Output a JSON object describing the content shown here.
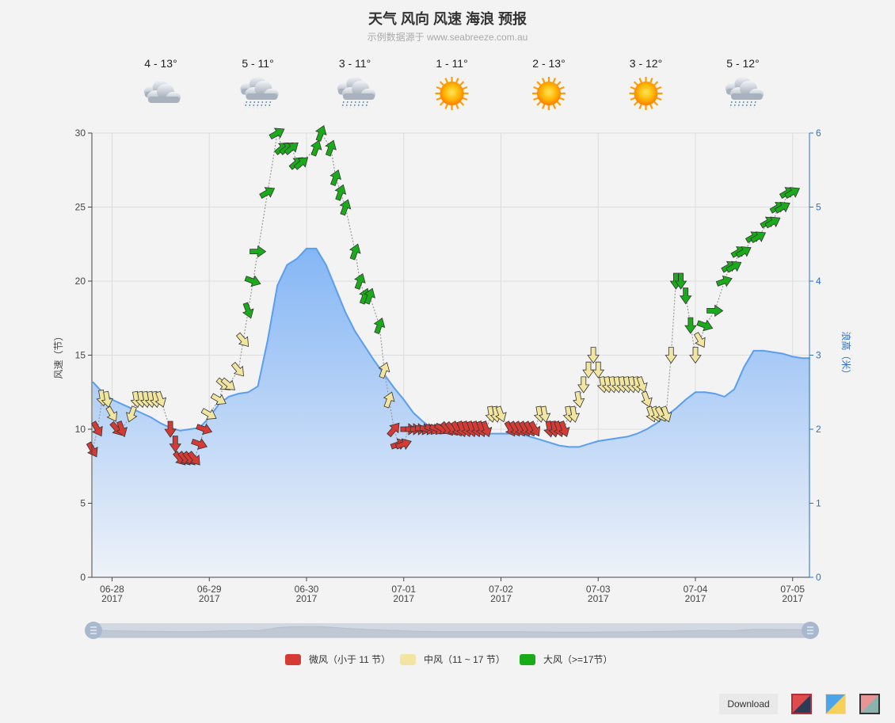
{
  "title": "天气 风向 风速 海浪 预报",
  "subtitle": "示例数据源于 www.seabreeze.com.au",
  "toolbar": {
    "download_label": "Download"
  },
  "weather": [
    {
      "temp": "4 - 13°",
      "icon": "cloudy-icon"
    },
    {
      "temp": "5 - 11°",
      "icon": "showers-icon"
    },
    {
      "temp": "3 - 11°",
      "icon": "showers-icon"
    },
    {
      "temp": "1 - 11°",
      "icon": "sunny-icon"
    },
    {
      "temp": "2 - 13°",
      "icon": "sunny-icon"
    },
    {
      "temp": "3 - 12°",
      "icon": "sunny-icon"
    },
    {
      "temp": "5 - 12°",
      "icon": "showers-icon"
    }
  ],
  "chart_data": {
    "type": "area",
    "x_ticks": [
      "06-28",
      "06-29",
      "06-30",
      "07-01",
      "07-02",
      "07-03",
      "07-04",
      "07-05"
    ],
    "x_tick_year": "2017",
    "x_start_day": -0.2,
    "x_end_day": 7.18,
    "y_left": {
      "label": "风速（节）",
      "min": 0,
      "max": 30,
      "ticks": [
        0,
        5,
        10,
        15,
        20,
        25,
        30
      ]
    },
    "y_right": {
      "label": "浪高（米）",
      "min": 0,
      "max": 6,
      "ticks": [
        0,
        1,
        2,
        3,
        4,
        5,
        6
      ]
    },
    "wave_height": [
      [
        -0.2,
        2.64
      ],
      [
        -0.1,
        2.5
      ],
      [
        0.0,
        2.4
      ],
      [
        0.1,
        2.34
      ],
      [
        0.2,
        2.28
      ],
      [
        0.3,
        2.22
      ],
      [
        0.4,
        2.16
      ],
      [
        0.5,
        2.08
      ],
      [
        0.6,
        2.02
      ],
      [
        0.7,
        1.98
      ],
      [
        0.8,
        2.0
      ],
      [
        0.9,
        2.02
      ],
      [
        1.0,
        2.16
      ],
      [
        1.1,
        2.34
      ],
      [
        1.2,
        2.44
      ],
      [
        1.3,
        2.48
      ],
      [
        1.4,
        2.5
      ],
      [
        1.5,
        2.58
      ],
      [
        1.6,
        3.2
      ],
      [
        1.7,
        3.94
      ],
      [
        1.8,
        4.22
      ],
      [
        1.9,
        4.3
      ],
      [
        2.0,
        4.44
      ],
      [
        2.1,
        4.44
      ],
      [
        2.2,
        4.22
      ],
      [
        2.3,
        3.9
      ],
      [
        2.4,
        3.58
      ],
      [
        2.5,
        3.32
      ],
      [
        2.6,
        3.12
      ],
      [
        2.7,
        2.92
      ],
      [
        2.8,
        2.74
      ],
      [
        2.9,
        2.56
      ],
      [
        3.0,
        2.4
      ],
      [
        3.1,
        2.22
      ],
      [
        3.2,
        2.1
      ],
      [
        3.3,
        2.0
      ],
      [
        3.4,
        1.96
      ],
      [
        3.5,
        1.94
      ],
      [
        3.6,
        1.94
      ],
      [
        3.7,
        1.94
      ],
      [
        3.8,
        1.94
      ],
      [
        3.9,
        1.94
      ],
      [
        4.0,
        1.94
      ],
      [
        4.1,
        1.94
      ],
      [
        4.2,
        1.94
      ],
      [
        4.3,
        1.9
      ],
      [
        4.4,
        1.86
      ],
      [
        4.5,
        1.82
      ],
      [
        4.6,
        1.78
      ],
      [
        4.7,
        1.76
      ],
      [
        4.8,
        1.76
      ],
      [
        4.9,
        1.8
      ],
      [
        5.0,
        1.84
      ],
      [
        5.1,
        1.86
      ],
      [
        5.2,
        1.88
      ],
      [
        5.3,
        1.9
      ],
      [
        5.4,
        1.94
      ],
      [
        5.5,
        2.0
      ],
      [
        5.6,
        2.08
      ],
      [
        5.7,
        2.18
      ],
      [
        5.8,
        2.28
      ],
      [
        5.9,
        2.4
      ],
      [
        6.0,
        2.5
      ],
      [
        6.1,
        2.5
      ],
      [
        6.2,
        2.48
      ],
      [
        6.3,
        2.44
      ],
      [
        6.4,
        2.54
      ],
      [
        6.5,
        2.84
      ],
      [
        6.6,
        3.06
      ],
      [
        6.7,
        3.06
      ],
      [
        6.8,
        3.04
      ],
      [
        6.9,
        3.02
      ],
      [
        7.0,
        2.98
      ],
      [
        7.1,
        2.96
      ],
      [
        7.18,
        2.96
      ]
    ],
    "wind_series": [
      {
        "name": "微风（小于 11 节）",
        "color": "#d53a35"
      },
      {
        "name": "中风（11 ~ 17 节）",
        "color": "#f1e5a0"
      },
      {
        "name": "大风（>=17节）",
        "color": "#1aab1a"
      }
    ],
    "wind": [
      [
        -0.2,
        8.6,
        330
      ],
      [
        -0.15,
        10.0,
        330
      ],
      [
        -0.1,
        12.1,
        350
      ],
      [
        -0.05,
        12.0,
        350
      ],
      [
        0.0,
        11.0,
        330
      ],
      [
        0.05,
        10.0,
        320
      ],
      [
        0.1,
        10.0,
        340
      ],
      [
        0.2,
        11.0,
        20
      ],
      [
        0.25,
        12.0,
        350
      ],
      [
        0.3,
        12.0,
        350
      ],
      [
        0.35,
        12.0,
        350
      ],
      [
        0.4,
        12.0,
        350
      ],
      [
        0.45,
        12.0,
        350
      ],
      [
        0.5,
        12.0,
        340
      ],
      [
        0.6,
        10.0,
        0
      ],
      [
        0.65,
        9.0,
        0
      ],
      [
        0.7,
        8.0,
        320
      ],
      [
        0.75,
        8.0,
        320
      ],
      [
        0.8,
        8.0,
        320
      ],
      [
        0.85,
        8.0,
        320
      ],
      [
        0.9,
        9.0,
        290
      ],
      [
        0.95,
        10.0,
        290
      ],
      [
        1.0,
        11.0,
        300
      ],
      [
        1.1,
        12.0,
        300
      ],
      [
        1.15,
        13.0,
        310
      ],
      [
        1.2,
        13.0,
        310
      ],
      [
        1.3,
        14.0,
        320
      ],
      [
        1.35,
        16.0,
        320
      ],
      [
        1.4,
        18.0,
        340
      ],
      [
        1.45,
        20.0,
        290
      ],
      [
        1.5,
        22.0,
        270
      ],
      [
        1.6,
        26.0,
        240
      ],
      [
        1.7,
        30.0,
        240
      ],
      [
        1.75,
        29.0,
        230
      ],
      [
        1.8,
        29.0,
        230
      ],
      [
        1.85,
        29.0,
        230
      ],
      [
        1.9,
        28.0,
        230
      ],
      [
        1.95,
        28.0,
        230
      ],
      [
        2.1,
        29.0,
        200
      ],
      [
        2.15,
        30.0,
        200
      ],
      [
        2.25,
        29.0,
        200
      ],
      [
        2.3,
        27.0,
        200
      ],
      [
        2.35,
        26.0,
        200
      ],
      [
        2.4,
        25.0,
        200
      ],
      [
        2.5,
        22.0,
        200
      ],
      [
        2.55,
        20.0,
        200
      ],
      [
        2.6,
        19.0,
        200
      ],
      [
        2.65,
        19.0,
        200
      ],
      [
        2.75,
        17.0,
        200
      ],
      [
        2.8,
        14.0,
        200
      ],
      [
        2.85,
        12.0,
        200
      ],
      [
        2.9,
        10.0,
        220
      ],
      [
        2.95,
        9.0,
        250
      ],
      [
        3.0,
        9.0,
        250
      ],
      [
        3.05,
        10.0,
        270
      ],
      [
        3.1,
        10.0,
        270
      ],
      [
        3.15,
        10.0,
        270
      ],
      [
        3.2,
        10.0,
        280
      ],
      [
        3.25,
        10.0,
        280
      ],
      [
        3.3,
        10.0,
        290
      ],
      [
        3.35,
        10.0,
        290
      ],
      [
        3.4,
        10.0,
        300
      ],
      [
        3.45,
        10.0,
        320
      ],
      [
        3.5,
        10.0,
        320
      ],
      [
        3.55,
        10.0,
        330
      ],
      [
        3.6,
        10.0,
        340
      ],
      [
        3.65,
        10.0,
        340
      ],
      [
        3.7,
        10.0,
        340
      ],
      [
        3.75,
        10.0,
        340
      ],
      [
        3.8,
        10.0,
        340
      ],
      [
        3.85,
        10.0,
        340
      ],
      [
        3.9,
        11.0,
        350
      ],
      [
        3.95,
        11.0,
        350
      ],
      [
        4.0,
        11.0,
        340
      ],
      [
        4.1,
        10.0,
        330
      ],
      [
        4.15,
        10.0,
        330
      ],
      [
        4.2,
        10.0,
        330
      ],
      [
        4.25,
        10.0,
        330
      ],
      [
        4.3,
        10.0,
        330
      ],
      [
        4.35,
        10.0,
        330
      ],
      [
        4.4,
        11.0,
        350
      ],
      [
        4.45,
        11.0,
        350
      ],
      [
        4.5,
        10.0,
        350
      ],
      [
        4.55,
        10.0,
        350
      ],
      [
        4.6,
        10.0,
        340
      ],
      [
        4.65,
        10.0,
        340
      ],
      [
        4.7,
        11.0,
        350
      ],
      [
        4.75,
        11.0,
        350
      ],
      [
        4.8,
        12.0,
        350
      ],
      [
        4.85,
        13.0,
        0
      ],
      [
        4.9,
        14.0,
        0
      ],
      [
        4.95,
        15.0,
        0
      ],
      [
        5.0,
        14.0,
        0
      ],
      [
        5.05,
        13.0,
        350
      ],
      [
        5.1,
        13.0,
        350
      ],
      [
        5.15,
        13.0,
        350
      ],
      [
        5.2,
        13.0,
        350
      ],
      [
        5.25,
        13.0,
        350
      ],
      [
        5.3,
        13.0,
        350
      ],
      [
        5.35,
        13.0,
        350
      ],
      [
        5.4,
        13.0,
        350
      ],
      [
        5.45,
        13.0,
        340
      ],
      [
        5.5,
        12.0,
        340
      ],
      [
        5.55,
        11.0,
        340
      ],
      [
        5.6,
        11.0,
        340
      ],
      [
        5.65,
        11.0,
        330
      ],
      [
        5.7,
        11.0,
        340
      ],
      [
        5.75,
        15.0,
        0
      ],
      [
        5.8,
        20.0,
        0
      ],
      [
        5.85,
        20.0,
        0
      ],
      [
        5.9,
        19.0,
        0
      ],
      [
        5.95,
        17.0,
        0
      ],
      [
        6.0,
        15.0,
        0
      ],
      [
        6.05,
        16.0,
        330
      ],
      [
        6.1,
        17.0,
        290
      ],
      [
        6.2,
        18.0,
        270
      ],
      [
        6.3,
        20.0,
        250
      ],
      [
        6.35,
        21.0,
        240
      ],
      [
        6.4,
        21.0,
        240
      ],
      [
        6.45,
        22.0,
        240
      ],
      [
        6.5,
        22.0,
        240
      ],
      [
        6.6,
        23.0,
        240
      ],
      [
        6.65,
        23.0,
        240
      ],
      [
        6.75,
        24.0,
        240
      ],
      [
        6.8,
        24.0,
        240
      ],
      [
        6.85,
        25.0,
        240
      ],
      [
        6.9,
        25.0,
        240
      ],
      [
        6.95,
        26.0,
        240
      ],
      [
        7.0,
        26.0,
        240
      ]
    ]
  }
}
